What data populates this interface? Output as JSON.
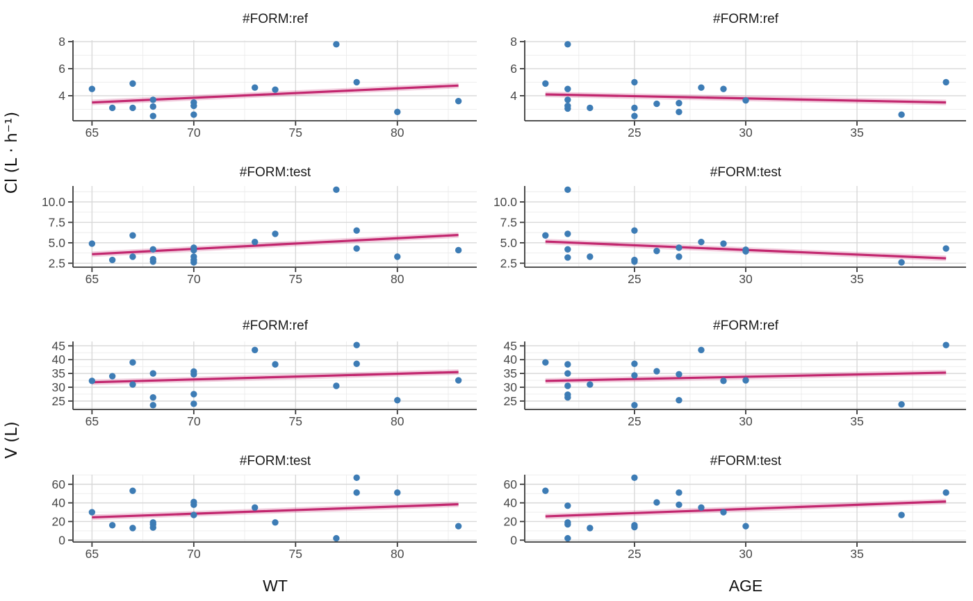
{
  "figure": {
    "y_axis_labels": [
      {
        "text": "Cl (L · h⁻¹)"
      },
      {
        "text": "V (L)"
      }
    ],
    "x_axis_labels": [
      {
        "text": "WT"
      },
      {
        "text": "AGE"
      }
    ],
    "colors": {
      "point": "#3d7cb5",
      "trend_line": "#c2266e",
      "grid_major": "#d8d8d8",
      "grid_minor": "#ebebeb",
      "axis_line": "#383838",
      "tick_text": "#474747",
      "title_text": "#1a1a1a"
    }
  },
  "chart_data": [
    {
      "type": "scatter",
      "id": "cl-wt-ref",
      "grid": {
        "row": 0,
        "col": 0
      },
      "title": "#FORM:ref",
      "xlabel": "WT",
      "ylabel": "Cl (L · h⁻¹)",
      "xlim": [
        64.1,
        83.9
      ],
      "ylim": [
        2.2,
        8.1
      ],
      "x_ticks": [
        65,
        70,
        75,
        80
      ],
      "x_minor": [
        67.5,
        72.5,
        77.5,
        82.5
      ],
      "y_ticks": [
        4,
        6,
        8
      ],
      "y_tick_labels": [
        "4",
        "6",
        "8"
      ],
      "y_minor": [
        3,
        5,
        7
      ],
      "points": [
        [
          65,
          4.5
        ],
        [
          66,
          3.1
        ],
        [
          67,
          4.9
        ],
        [
          67,
          3.1
        ],
        [
          68,
          3.7
        ],
        [
          68,
          3.2
        ],
        [
          68,
          2.5
        ],
        [
          70,
          3.5
        ],
        [
          70,
          3.25
        ],
        [
          70,
          2.6
        ],
        [
          73,
          4.6
        ],
        [
          74,
          4.45
        ],
        [
          77,
          7.8
        ],
        [
          78,
          5.0
        ],
        [
          80,
          2.8
        ],
        [
          83,
          3.6
        ]
      ],
      "trend": {
        "x": [
          65,
          83
        ],
        "y": [
          3.5,
          4.75
        ]
      }
    },
    {
      "type": "scatter",
      "id": "cl-age-ref",
      "grid": {
        "row": 0,
        "col": 1
      },
      "title": "#FORM:ref",
      "xlabel": "AGE",
      "ylabel": "Cl (L · h⁻¹)",
      "xlim": [
        20.1,
        39.9
      ],
      "ylim": [
        2.2,
        8.1
      ],
      "x_ticks": [
        25,
        30,
        35
      ],
      "x_minor": [
        22.5,
        27.5,
        32.5,
        37.5
      ],
      "y_ticks": [
        4,
        6,
        8
      ],
      "y_tick_labels": [
        "4",
        "6",
        "8"
      ],
      "y_minor": [
        3,
        5,
        7
      ],
      "points": [
        [
          21,
          4.9
        ],
        [
          22,
          7.8
        ],
        [
          22,
          4.5
        ],
        [
          22,
          3.7
        ],
        [
          22,
          3.25
        ],
        [
          22,
          3.05
        ],
        [
          23,
          3.1
        ],
        [
          25,
          5.0
        ],
        [
          25,
          3.1
        ],
        [
          25,
          2.5
        ],
        [
          26,
          3.4
        ],
        [
          27,
          3.45
        ],
        [
          27,
          2.8
        ],
        [
          28,
          4.6
        ],
        [
          29,
          4.5
        ],
        [
          30,
          3.65
        ],
        [
          37,
          2.6
        ],
        [
          39,
          5.0
        ]
      ],
      "trend": {
        "x": [
          21,
          39
        ],
        "y": [
          4.1,
          3.5
        ]
      }
    },
    {
      "type": "scatter",
      "id": "cl-wt-test",
      "grid": {
        "row": 1,
        "col": 0
      },
      "title": "#FORM:test",
      "xlabel": "WT",
      "ylabel": "Cl (L · h⁻¹)",
      "xlim": [
        64.1,
        83.9
      ],
      "ylim": [
        2.1,
        11.95
      ],
      "x_ticks": [
        65,
        70,
        75,
        80
      ],
      "x_minor": [
        67.5,
        72.5,
        77.5,
        82.5
      ],
      "y_ticks": [
        2.5,
        5.0,
        7.5,
        10.0
      ],
      "y_tick_labels": [
        "2.5",
        "5.0",
        "7.5",
        "10.0"
      ],
      "y_minor": [
        3.75,
        6.25,
        8.75,
        11.25
      ],
      "points": [
        [
          65,
          4.9
        ],
        [
          66,
          2.9
        ],
        [
          67,
          5.9
        ],
        [
          67,
          3.3
        ],
        [
          68,
          4.2
        ],
        [
          68,
          3.0
        ],
        [
          68,
          2.7
        ],
        [
          70,
          4.4
        ],
        [
          70,
          4.1
        ],
        [
          70,
          3.3
        ],
        [
          70,
          2.9
        ],
        [
          70,
          2.6
        ],
        [
          73,
          5.1
        ],
        [
          74,
          6.1
        ],
        [
          77,
          11.5
        ],
        [
          78,
          6.5
        ],
        [
          78,
          4.3
        ],
        [
          80,
          3.3
        ],
        [
          83,
          4.1
        ]
      ],
      "trend": {
        "x": [
          65,
          83
        ],
        "y": [
          3.6,
          5.95
        ]
      }
    },
    {
      "type": "scatter",
      "id": "cl-age-test",
      "grid": {
        "row": 1,
        "col": 1
      },
      "title": "#FORM:test",
      "xlabel": "AGE",
      "ylabel": "Cl (L · h⁻¹)",
      "xlim": [
        20.1,
        39.9
      ],
      "ylim": [
        2.1,
        11.95
      ],
      "x_ticks": [
        25,
        30,
        35
      ],
      "x_minor": [
        22.5,
        27.5,
        32.5,
        37.5
      ],
      "y_ticks": [
        2.5,
        5.0,
        7.5,
        10.0
      ],
      "y_tick_labels": [
        "2.5",
        "5.0",
        "7.5",
        "10.0"
      ],
      "y_minor": [
        3.75,
        6.25,
        8.75,
        11.25
      ],
      "points": [
        [
          21,
          5.9
        ],
        [
          22,
          11.5
        ],
        [
          22,
          6.1
        ],
        [
          22,
          4.2
        ],
        [
          22,
          3.2
        ],
        [
          23,
          3.3
        ],
        [
          25,
          6.5
        ],
        [
          25,
          2.9
        ],
        [
          25,
          2.7
        ],
        [
          26,
          4.0
        ],
        [
          27,
          4.4
        ],
        [
          27,
          3.3
        ],
        [
          28,
          5.1
        ],
        [
          29,
          4.9
        ],
        [
          30,
          4.15
        ],
        [
          30,
          3.95
        ],
        [
          37,
          2.6
        ],
        [
          39,
          4.3
        ]
      ],
      "trend": {
        "x": [
          21,
          39
        ],
        "y": [
          5.15,
          3.1
        ]
      }
    },
    {
      "type": "scatter",
      "id": "v-wt-ref",
      "grid": {
        "row": 2,
        "col": 0
      },
      "title": "#FORM:ref",
      "xlabel": "WT",
      "ylabel": "V (L)",
      "xlim": [
        64.1,
        83.9
      ],
      "ylim": [
        22.2,
        46.6
      ],
      "x_ticks": [
        65,
        70,
        75,
        80
      ],
      "x_minor": [
        67.5,
        72.5,
        77.5,
        82.5
      ],
      "y_ticks": [
        25,
        30,
        35,
        40,
        45
      ],
      "y_tick_labels": [
        "25",
        "30",
        "35",
        "40",
        "45"
      ],
      "y_minor": [
        22.5,
        27.5,
        32.5,
        37.5,
        42.5
      ],
      "points": [
        [
          65,
          32.3
        ],
        [
          66,
          34.0
        ],
        [
          67,
          39.0
        ],
        [
          67,
          31.0
        ],
        [
          68,
          35.0
        ],
        [
          68,
          26.3
        ],
        [
          68,
          23.5
        ],
        [
          70,
          35.7
        ],
        [
          70,
          34.7
        ],
        [
          70,
          27.5
        ],
        [
          70,
          24.0
        ],
        [
          73,
          43.5
        ],
        [
          74,
          38.3
        ],
        [
          77,
          30.5
        ],
        [
          78,
          45.3
        ],
        [
          78,
          38.5
        ],
        [
          80,
          25.3
        ],
        [
          83,
          32.5
        ]
      ],
      "trend": {
        "x": [
          65,
          83
        ],
        "y": [
          31.8,
          35.5
        ]
      }
    },
    {
      "type": "scatter",
      "id": "v-age-ref",
      "grid": {
        "row": 2,
        "col": 1
      },
      "title": "#FORM:ref",
      "xlabel": "AGE",
      "ylabel": "V (L)",
      "xlim": [
        20.1,
        39.9
      ],
      "ylim": [
        22.2,
        46.6
      ],
      "x_ticks": [
        25,
        30,
        35
      ],
      "x_minor": [
        22.5,
        27.5,
        32.5,
        37.5
      ],
      "y_ticks": [
        25,
        30,
        35,
        40,
        45
      ],
      "y_tick_labels": [
        "25",
        "30",
        "35",
        "40",
        "45"
      ],
      "y_minor": [
        22.5,
        27.5,
        32.5,
        37.5,
        42.5
      ],
      "points": [
        [
          21,
          39.0
        ],
        [
          22,
          38.3
        ],
        [
          22,
          35.0
        ],
        [
          22,
          30.5
        ],
        [
          22,
          27.3
        ],
        [
          22,
          26.3
        ],
        [
          23,
          31.0
        ],
        [
          25,
          38.5
        ],
        [
          25,
          34.3
        ],
        [
          25,
          23.5
        ],
        [
          26,
          35.8
        ],
        [
          27,
          34.7
        ],
        [
          27,
          25.3
        ],
        [
          28,
          43.5
        ],
        [
          29,
          32.3
        ],
        [
          30,
          32.5
        ],
        [
          37,
          23.8
        ],
        [
          39,
          45.3
        ]
      ],
      "trend": {
        "x": [
          21,
          39
        ],
        "y": [
          32.3,
          35.3
        ]
      }
    },
    {
      "type": "scatter",
      "id": "v-wt-test",
      "grid": {
        "row": 3,
        "col": 0
      },
      "title": "#FORM:test",
      "xlabel": "WT",
      "ylabel": "V (L)",
      "xlim": [
        64.1,
        83.9
      ],
      "ylim": [
        -1.25,
        70.25
      ],
      "x_ticks": [
        65,
        70,
        75,
        80
      ],
      "x_minor": [
        67.5,
        72.5,
        77.5,
        82.5
      ],
      "y_ticks": [
        0,
        20,
        40,
        60
      ],
      "y_tick_labels": [
        "0",
        "20",
        "40",
        "60"
      ],
      "y_minor": [
        10,
        30,
        50,
        70
      ],
      "points": [
        [
          65,
          30
        ],
        [
          66,
          16
        ],
        [
          67,
          53
        ],
        [
          67,
          13
        ],
        [
          68,
          19
        ],
        [
          68,
          17
        ],
        [
          68,
          13.5
        ],
        [
          70,
          41
        ],
        [
          70,
          38
        ],
        [
          70,
          27
        ],
        [
          73,
          35
        ],
        [
          74,
          19
        ],
        [
          77,
          2
        ],
        [
          78,
          67
        ],
        [
          78,
          51
        ],
        [
          80,
          51
        ],
        [
          83,
          15
        ]
      ],
      "trend": {
        "x": [
          65,
          83
        ],
        "y": [
          24.5,
          38.5
        ]
      }
    },
    {
      "type": "scatter",
      "id": "v-age-test",
      "grid": {
        "row": 3,
        "col": 1
      },
      "title": "#FORM:test",
      "xlabel": "AGE",
      "ylabel": "V (L)",
      "xlim": [
        20.1,
        39.9
      ],
      "ylim": [
        -1.25,
        70.25
      ],
      "x_ticks": [
        25,
        30,
        35
      ],
      "x_minor": [
        22.5,
        27.5,
        32.5,
        37.5
      ],
      "y_ticks": [
        0,
        20,
        40,
        60
      ],
      "y_tick_labels": [
        "0",
        "20",
        "40",
        "60"
      ],
      "y_minor": [
        10,
        30,
        50,
        70
      ],
      "points": [
        [
          21,
          53
        ],
        [
          22,
          37
        ],
        [
          22,
          19
        ],
        [
          22,
          17
        ],
        [
          22,
          2
        ],
        [
          23,
          13
        ],
        [
          25,
          67
        ],
        [
          25,
          16
        ],
        [
          25,
          14
        ],
        [
          26,
          40.5
        ],
        [
          27,
          51
        ],
        [
          27,
          38
        ],
        [
          28,
          35
        ],
        [
          29,
          30
        ],
        [
          30,
          15
        ],
        [
          37,
          27
        ],
        [
          39,
          51
        ]
      ],
      "trend": {
        "x": [
          21,
          39
        ],
        "y": [
          25.5,
          41.5
        ]
      }
    }
  ]
}
